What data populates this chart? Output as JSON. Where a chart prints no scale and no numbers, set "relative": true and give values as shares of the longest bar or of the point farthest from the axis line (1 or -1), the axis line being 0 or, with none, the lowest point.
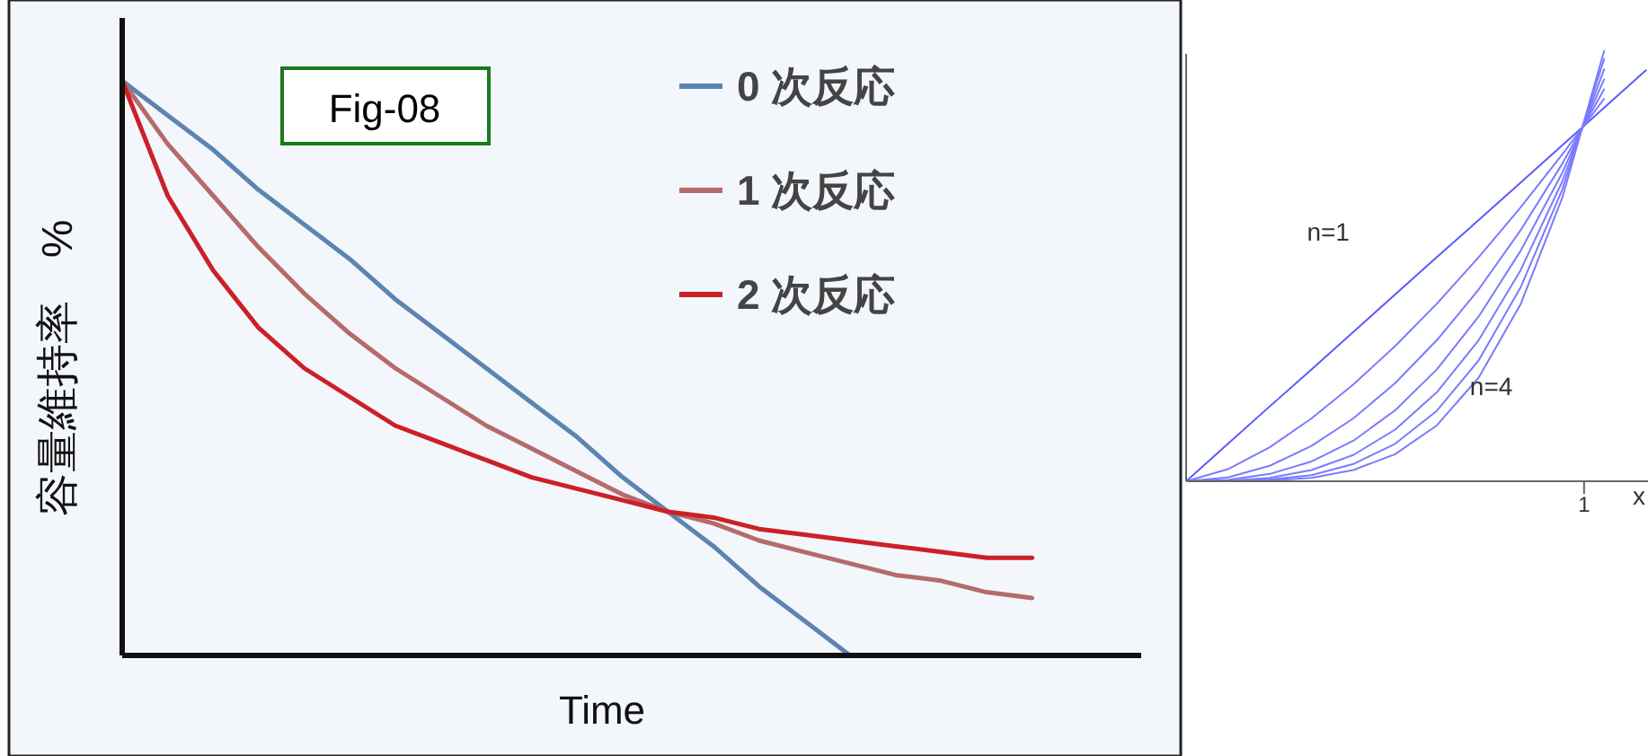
{
  "chart_data": [
    {
      "type": "line",
      "relative": true,
      "xlabel": "Time",
      "ylabel": "容量維持率　%",
      "legend": "top right",
      "annotations": [
        "Fig-08"
      ],
      "categories": [
        null,
        null,
        null,
        null,
        null,
        null,
        null,
        null,
        null,
        null,
        null,
        null,
        null,
        null,
        null,
        null,
        null,
        null,
        null,
        null,
        null
      ],
      "series": [
        {
          "name": "0 次反応",
          "color": "#5b84b1",
          "values": [
            1,
            0.94,
            0.88,
            0.81,
            0.75,
            0.69,
            0.62,
            0.56,
            0.5,
            0.44,
            0.38,
            0.31,
            0.25,
            0.19,
            0.12,
            0.06,
            0,
            null,
            null,
            null,
            null
          ]
        },
        {
          "name": "1 次反応",
          "color": "#b56b6b",
          "values": [
            1,
            0.89,
            0.8,
            0.71,
            0.63,
            0.56,
            0.5,
            0.45,
            0.4,
            0.36,
            0.32,
            0.28,
            0.25,
            0.23,
            0.2,
            0.18,
            0.16,
            0.14,
            0.13,
            0.11,
            0.1
          ]
        },
        {
          "name": "2 次反応",
          "color": "#cc2027",
          "values": [
            1,
            0.8,
            0.67,
            0.57,
            0.5,
            0.45,
            0.4,
            0.37,
            0.34,
            0.31,
            0.29,
            0.27,
            0.25,
            0.24,
            0.22,
            0.21,
            0.2,
            0.19,
            0.18,
            0.17,
            0.17
          ]
        }
      ]
    },
    {
      "type": "line",
      "relative": true,
      "xlabel": "x",
      "annotations": [
        "n=1",
        "n=4",
        "1"
      ],
      "categories": [
        null,
        null,
        null,
        null,
        null,
        null,
        null,
        null,
        null,
        null,
        null,
        null
      ],
      "series": [
        {
          "color": "#5a5aff",
          "values": [
            0,
            0.087,
            0.174,
            0.26,
            0.347,
            0.434,
            0.521,
            0.607,
            0.694,
            0.781,
            0.868,
            0.955
          ]
        },
        {
          "color": "#7a7aff",
          "values": [
            0,
            0.028,
            0.079,
            0.146,
            0.225,
            0.314,
            0.413,
            0.521,
            0.636,
            0.76,
            0.889,
            null
          ]
        },
        {
          "color": "#7a7aff",
          "values": [
            0,
            0.009,
            0.036,
            0.082,
            0.146,
            0.228,
            0.328,
            0.446,
            0.583,
            0.738,
            0.911,
            null
          ]
        },
        {
          "color": "#7a7aff",
          "values": [
            0,
            0.003,
            0.017,
            0.046,
            0.094,
            0.165,
            0.26,
            0.383,
            0.535,
            0.717,
            0.934,
            null
          ]
        },
        {
          "color": "#7a7aff",
          "values": [
            0,
            0.001,
            0.008,
            0.026,
            0.061,
            0.12,
            0.207,
            0.328,
            0.49,
            0.697,
            0.957,
            null
          ]
        },
        {
          "color": "#7a7aff",
          "values": [
            0,
            0,
            0.004,
            0.014,
            0.04,
            0.087,
            0.164,
            0.281,
            0.45,
            0.678,
            0.981,
            null
          ]
        },
        {
          "color": "#7a7aff",
          "values": [
            0,
            0,
            0.002,
            0.008,
            0.026,
            0.063,
            0.13,
            0.241,
            0.411,
            0.659,
            1,
            null
          ]
        }
      ]
    }
  ]
}
